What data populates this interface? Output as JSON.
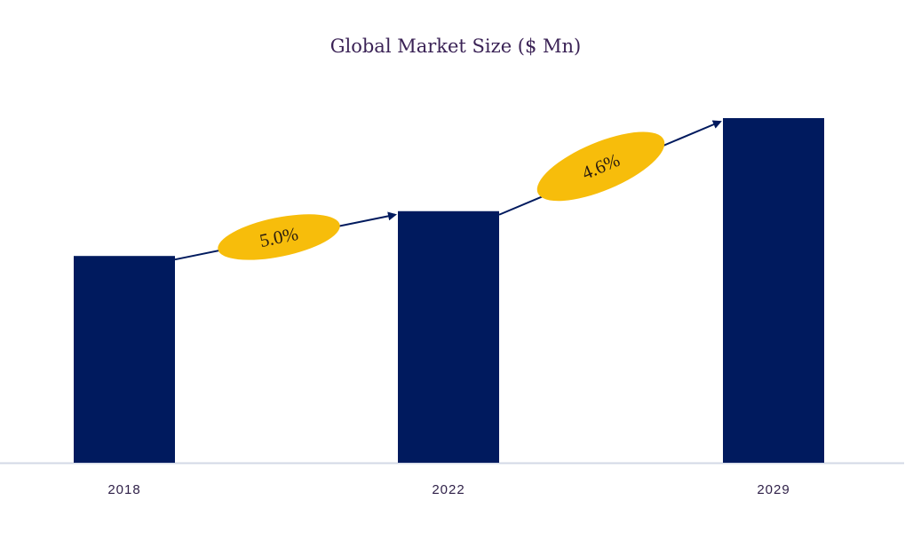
{
  "chart_data": {
    "type": "bar",
    "title": "Global Market Size ($ Mn)",
    "categories": [
      "2018",
      "2022",
      "2029"
    ],
    "values": [
      60,
      73,
      100
    ],
    "value_note_unit": "relative (no y-axis shown)",
    "ylim": [
      0,
      100
    ],
    "xlabel": "",
    "ylabel": "",
    "grid": false,
    "annotations": [
      {
        "from": "2018",
        "to": "2022",
        "label": "5.0%"
      },
      {
        "from": "2022",
        "to": "2029",
        "label": "4.6%"
      }
    ],
    "colors": {
      "bar": "#001a5e",
      "badge": "#f7bd0b",
      "title": "#3b2356",
      "axis": "#d3d8e6"
    }
  }
}
